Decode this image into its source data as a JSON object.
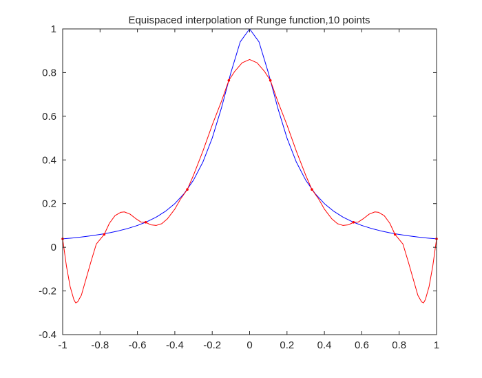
{
  "chart_data": {
    "type": "line",
    "title": "Equispaced interpolation of Runge function,10 points",
    "xlabel": "",
    "ylabel": "",
    "xlim": [
      -1,
      1
    ],
    "ylim": [
      -0.4,
      1
    ],
    "x_ticks": [
      -1,
      -0.8,
      -0.6,
      -0.4,
      -0.2,
      0,
      0.2,
      0.4,
      0.6,
      0.8,
      1
    ],
    "x_tick_labels": [
      "-1",
      "-0.8",
      "-0.6",
      "-0.4",
      "-0.2",
      "0",
      "0.2",
      "0.4",
      "0.6",
      "0.8",
      "1"
    ],
    "y_ticks": [
      -0.4,
      -0.2,
      0,
      0.2,
      0.4,
      0.6,
      0.8,
      1
    ],
    "y_tick_labels": [
      "-0.4",
      "-0.2",
      "0",
      "0.2",
      "0.4",
      "0.6",
      "0.8",
      "1"
    ],
    "grid": false,
    "legend": "none",
    "series": [
      {
        "color": "#0000ff",
        "style": "line",
        "points": [
          [
            -1,
            0.0385
          ],
          [
            -0.95,
            0.0424
          ],
          [
            -0.9,
            0.0471
          ],
          [
            -0.85,
            0.0525
          ],
          [
            -0.8,
            0.0588
          ],
          [
            -0.75,
            0.0664
          ],
          [
            -0.7,
            0.0755
          ],
          [
            -0.65,
            0.0865
          ],
          [
            -0.6,
            0.1
          ],
          [
            -0.55,
            0.1168
          ],
          [
            -0.5,
            0.1379
          ],
          [
            -0.45,
            0.1649
          ],
          [
            -0.4,
            0.2
          ],
          [
            -0.35,
            0.2462
          ],
          [
            -0.3,
            0.3077
          ],
          [
            -0.25,
            0.3902
          ],
          [
            -0.2,
            0.5
          ],
          [
            -0.15,
            0.64
          ],
          [
            -0.1,
            0.8
          ],
          [
            -0.05,
            0.9412
          ],
          [
            0,
            1
          ],
          [
            0.05,
            0.9412
          ],
          [
            0.1,
            0.8
          ],
          [
            0.15,
            0.64
          ],
          [
            0.2,
            0.5
          ],
          [
            0.25,
            0.3902
          ],
          [
            0.3,
            0.3077
          ],
          [
            0.35,
            0.2462
          ],
          [
            0.4,
            0.2
          ],
          [
            0.45,
            0.1649
          ],
          [
            0.5,
            0.1379
          ],
          [
            0.55,
            0.1168
          ],
          [
            0.6,
            0.1
          ],
          [
            0.65,
            0.0865
          ],
          [
            0.7,
            0.0755
          ],
          [
            0.75,
            0.0664
          ],
          [
            0.8,
            0.0588
          ],
          [
            0.85,
            0.0525
          ],
          [
            0.9,
            0.0471
          ],
          [
            0.95,
            0.0424
          ],
          [
            1,
            0.0385
          ]
        ]
      },
      {
        "color": "#ff0000",
        "style": "line",
        "points": [
          [
            -1,
            0.0385
          ],
          [
            -0.98,
            -0.085
          ],
          [
            -0.96,
            -0.18
          ],
          [
            -0.94,
            -0.24
          ],
          [
            -0.93,
            -0.255
          ],
          [
            -0.92,
            -0.25
          ],
          [
            -0.9,
            -0.22
          ],
          [
            -0.88,
            -0.16
          ],
          [
            -0.85,
            -0.07
          ],
          [
            -0.82,
            0.015
          ],
          [
            -0.7778,
            0.0588
          ],
          [
            -0.75,
            0.11
          ],
          [
            -0.72,
            0.145
          ],
          [
            -0.69,
            0.16
          ],
          [
            -0.67,
            0.162
          ],
          [
            -0.64,
            0.152
          ],
          [
            -0.61,
            0.132
          ],
          [
            -0.58,
            0.115
          ],
          [
            -0.5556,
            0.1147
          ],
          [
            -0.53,
            0.103
          ],
          [
            -0.5,
            0.1
          ],
          [
            -0.47,
            0.108
          ],
          [
            -0.44,
            0.13
          ],
          [
            -0.4,
            0.175
          ],
          [
            -0.37,
            0.22
          ],
          [
            -0.3333,
            0.2647
          ],
          [
            -0.3,
            0.33
          ],
          [
            -0.25,
            0.44
          ],
          [
            -0.2,
            0.56
          ],
          [
            -0.15,
            0.67
          ],
          [
            -0.1111,
            0.7642
          ],
          [
            -0.08,
            0.805
          ],
          [
            -0.04,
            0.845
          ],
          [
            0,
            0.86
          ],
          [
            0.04,
            0.845
          ],
          [
            0.08,
            0.805
          ],
          [
            0.1111,
            0.7642
          ],
          [
            0.15,
            0.67
          ],
          [
            0.2,
            0.56
          ],
          [
            0.25,
            0.44
          ],
          [
            0.3,
            0.33
          ],
          [
            0.3333,
            0.2647
          ],
          [
            0.37,
            0.22
          ],
          [
            0.4,
            0.175
          ],
          [
            0.44,
            0.13
          ],
          [
            0.47,
            0.108
          ],
          [
            0.5,
            0.1
          ],
          [
            0.53,
            0.103
          ],
          [
            0.5556,
            0.1147
          ],
          [
            0.58,
            0.115
          ],
          [
            0.61,
            0.132
          ],
          [
            0.64,
            0.152
          ],
          [
            0.67,
            0.162
          ],
          [
            0.69,
            0.16
          ],
          [
            0.72,
            0.145
          ],
          [
            0.75,
            0.11
          ],
          [
            0.7778,
            0.0588
          ],
          [
            0.82,
            0.015
          ],
          [
            0.85,
            -0.07
          ],
          [
            0.88,
            -0.16
          ],
          [
            0.9,
            -0.22
          ],
          [
            0.92,
            -0.25
          ],
          [
            0.93,
            -0.255
          ],
          [
            0.94,
            -0.24
          ],
          [
            0.96,
            -0.18
          ],
          [
            0.98,
            -0.085
          ],
          [
            1,
            0.0385
          ]
        ]
      },
      {
        "color": "#ff0000",
        "style": "markers",
        "points": [
          [
            -1,
            0.0385
          ],
          [
            -0.7778,
            0.0588
          ],
          [
            -0.5556,
            0.1147
          ],
          [
            -0.3333,
            0.2647
          ],
          [
            -0.1111,
            0.7642
          ],
          [
            0.1111,
            0.7642
          ],
          [
            0.3333,
            0.2647
          ],
          [
            0.5556,
            0.1147
          ],
          [
            0.7778,
            0.0588
          ],
          [
            1,
            0.0385
          ]
        ]
      }
    ]
  }
}
